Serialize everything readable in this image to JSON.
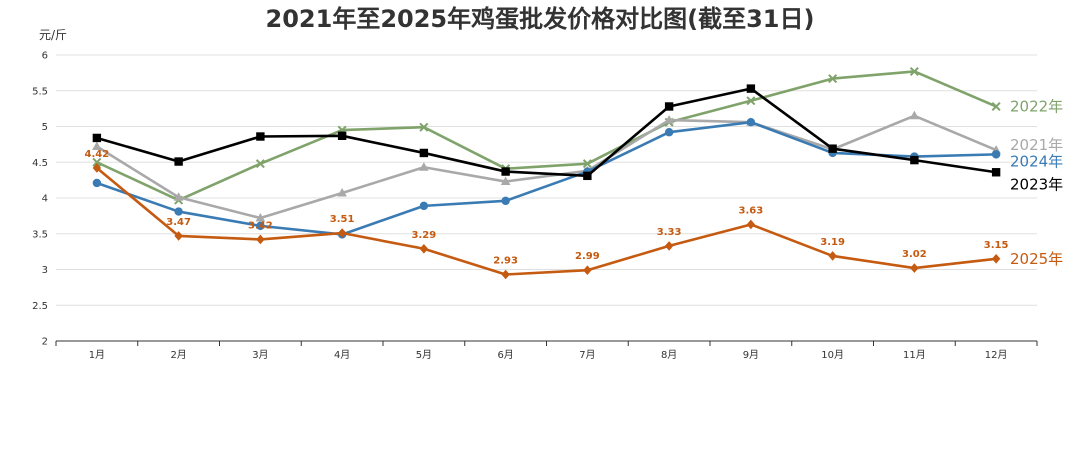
{
  "chart_data": {
    "type": "line",
    "title": "2021年至2025年鸡蛋批发价格对比图(截至31日)",
    "ylabel": "元/斤",
    "xlabel": "",
    "ylim": [
      2,
      6
    ],
    "yticks": [
      "2",
      "2.5",
      "3",
      "3.5",
      "4",
      "4.5",
      "5",
      "5.5",
      "6"
    ],
    "grid": true,
    "categories": [
      "1月",
      "2月",
      "3月",
      "4月",
      "5月",
      "6月",
      "7月",
      "8月",
      "9月",
      "10月",
      "11月",
      "12月"
    ],
    "series": [
      {
        "name": "2022年",
        "color": "#7fa36a",
        "marker": "x",
        "values": [
          4.5,
          3.97,
          4.48,
          4.95,
          4.99,
          4.41,
          4.48,
          5.06,
          5.36,
          5.67,
          5.77,
          5.28
        ]
      },
      {
        "name": "2021年",
        "color": "#a9a9a9",
        "marker": "triangle",
        "values": [
          4.72,
          4.01,
          3.72,
          4.07,
          4.43,
          4.23,
          4.38,
          5.09,
          5.06,
          4.68,
          5.15,
          4.67
        ]
      },
      {
        "name": "2024年",
        "color": "#3a7bb4",
        "marker": "circle",
        "values": [
          4.21,
          3.81,
          3.61,
          3.49,
          3.89,
          3.96,
          4.37,
          4.92,
          5.06,
          4.63,
          4.58,
          4.61
        ]
      },
      {
        "name": "2023年",
        "color": "#000000",
        "marker": "square",
        "values": [
          4.84,
          4.51,
          4.86,
          4.87,
          4.63,
          4.37,
          4.31,
          5.28,
          5.53,
          4.69,
          4.53,
          4.36
        ]
      },
      {
        "name": "2025年",
        "color": "#c55a11",
        "marker": "diamond",
        "values": [
          4.42,
          3.47,
          3.42,
          3.51,
          3.29,
          2.93,
          2.99,
          3.33,
          3.63,
          3.19,
          3.02,
          3.15
        ],
        "data_labels": [
          "4.42",
          "3.47",
          "3.42",
          "3.51",
          "3.29",
          "2.93",
          "2.99",
          "3.33",
          "3.63",
          "3.19",
          "3.02",
          "3.15"
        ]
      }
    ]
  }
}
